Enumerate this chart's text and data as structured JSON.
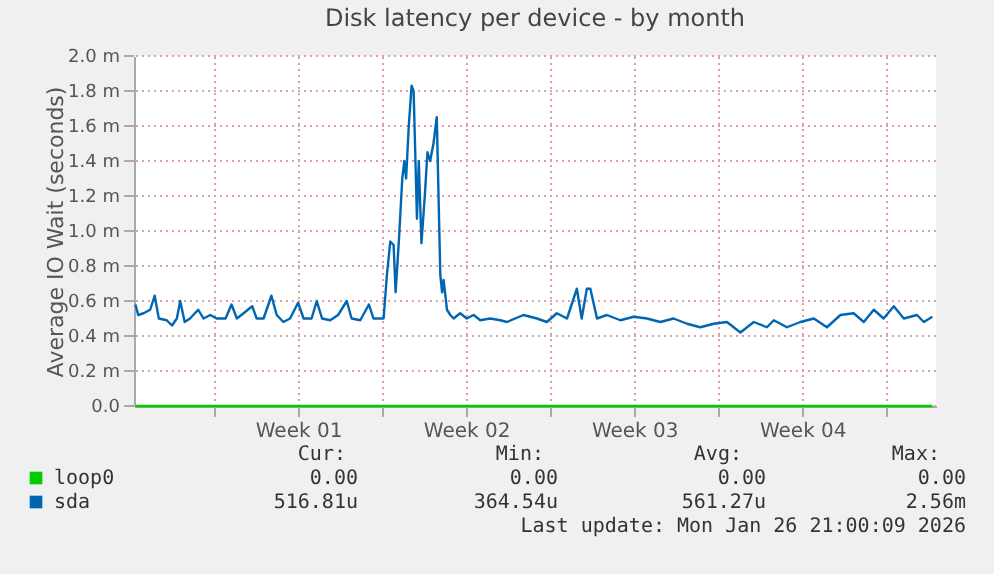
{
  "chart_data": {
    "type": "line",
    "title": "Disk latency per device - by month",
    "ylabel": "Average IO Wait (seconds)",
    "xlim": [
      "2025-12-25T16:00",
      "2026-01-28T01:40"
    ],
    "ylim": [
      0,
      2.0
    ],
    "xticks": [
      {
        "value": "2025-12-29",
        "label": null
      },
      {
        "value": "2026-01-01T12:00",
        "label": "Week 01"
      },
      {
        "value": "2026-01-05",
        "label": null
      },
      {
        "value": "2026-01-08T12:00",
        "label": "Week 02"
      },
      {
        "value": "2026-01-12",
        "label": null
      },
      {
        "value": "2026-01-15T12:00",
        "label": "Week 03"
      },
      {
        "value": "2026-01-19",
        "label": null
      },
      {
        "value": "2026-01-22T12:00",
        "label": "Week 04"
      },
      {
        "value": "2026-01-26",
        "label": null
      }
    ],
    "yticks": [
      {
        "value": 0,
        "label": "0.0"
      },
      {
        "value": 0.2,
        "label": "0.2 m"
      },
      {
        "value": 0.4,
        "label": "0.4 m"
      },
      {
        "value": 0.6,
        "label": "0.6 m"
      },
      {
        "value": 0.8,
        "label": "0.8 m"
      },
      {
        "value": 1.0,
        "label": "1.0 m"
      },
      {
        "value": 1.2,
        "label": "1.2 m"
      },
      {
        "value": 1.4,
        "label": "1.4 m"
      },
      {
        "value": 1.6,
        "label": "1.6 m"
      },
      {
        "value": 1.8,
        "label": "1.8 m"
      },
      {
        "value": 2.0,
        "label": "2.0 m"
      }
    ],
    "grid": true,
    "legend": "bottom",
    "series": [
      {
        "name": "loop0",
        "color": "#00cc00",
        "x": [
          "2025-12-25T17:30",
          "2026-01-27T22:00"
        ],
        "values": [
          0,
          0
        ]
      },
      {
        "name": "sda",
        "color": "#0066b3",
        "x": [
          "2025-12-25T17:30",
          "2025-12-25T20:10",
          "2025-12-26T01:30",
          "2025-12-26T08:10",
          "2025-12-26T12:40",
          "2025-12-26T16:50",
          "2025-12-27T00:40",
          "2025-12-27T06:00",
          "2025-12-27T10:50",
          "2025-12-27T14:10",
          "2025-12-27T18:40",
          "2025-12-28T00:00",
          "2025-12-28T08:10",
          "2025-12-28T13:30",
          "2025-12-28T20:10",
          "2025-12-29T02:40",
          "2025-12-29T11:30",
          "2025-12-29T17:30",
          "2025-12-29T22:50",
          "2025-12-30T05:30",
          "2025-12-30T14:10",
          "2025-12-30T18:40",
          "2025-12-31T01:30",
          "2025-12-31T09:20",
          "2025-12-31T14:40",
          "2025-12-31T21:20",
          "2026-01-01T04:00",
          "2026-01-01T12:00",
          "2026-01-01T17:30",
          "2026-01-02T01:30",
          "2026-01-02T06:40",
          "2026-01-02T12:00",
          "2026-01-02T20:10",
          "2026-01-03T04:00",
          "2026-01-03T12:40",
          "2026-01-03T17:30",
          "2026-01-04T02:10",
          "2026-01-04T10:50",
          "2026-01-04T15:20",
          "2026-01-04T22:10",
          "2026-01-05T01:30",
          "2026-01-05T04:50",
          "2026-01-05T08:10",
          "2026-01-05T11:30",
          "2026-01-05T13:30",
          "2026-01-05T16:50",
          "2026-01-05T20:10",
          "2026-01-05T22:10",
          "2026-01-06T00:00",
          "2026-01-06T02:40",
          "2026-01-06T05:30",
          "2026-01-06T07:30",
          "2026-01-06T10:50",
          "2026-01-06T12:40",
          "2026-01-06T15:20",
          "2026-01-06T18:40",
          "2026-01-06T21:20",
          "2026-01-07T00:00",
          "2026-01-07T03:20",
          "2026-01-07T06:40",
          "2026-01-07T10:10",
          "2026-01-07T12:00",
          "2026-01-07T13:30",
          "2026-01-07T16:50",
          "2026-01-07T20:10",
          "2026-01-07T23:30",
          "2026-01-08T06:00",
          "2026-01-08T12:40",
          "2026-01-08T19:30",
          "2026-01-09T02:10",
          "2026-01-09T12:00",
          "2026-01-09T22:10",
          "2026-01-10T04:50",
          "2026-01-10T21:20",
          "2026-01-11T10:50",
          "2026-01-11T20:40",
          "2026-01-12T06:40",
          "2026-01-12T16:50",
          "2026-01-13T02:40",
          "2026-01-13T07:30",
          "2026-01-13T12:40",
          "2026-01-13T16:10",
          "2026-01-13T22:50",
          "2026-01-14T08:40",
          "2026-01-14T22:10",
          "2026-01-15T11:30",
          "2026-01-16T00:40",
          "2026-01-16T14:10",
          "2026-01-17T03:20",
          "2026-01-17T16:50",
          "2026-01-18T06:00",
          "2026-01-18T19:30",
          "2026-01-19T08:40",
          "2026-01-19T22:10",
          "2026-01-20T11:30",
          "2026-01-21T00:40",
          "2026-01-21T07:30",
          "2026-01-21T20:40",
          "2026-01-22T10:10",
          "2026-01-22T23:30",
          "2026-01-23T12:40",
          "2026-01-24T02:10",
          "2026-01-24T15:20",
          "2026-01-25T01:30",
          "2026-01-25T11:30",
          "2026-01-25T21:20",
          "2026-01-26T07:30",
          "2026-01-26T17:30",
          "2026-01-27T06:40",
          "2026-01-27T13:30",
          "2026-01-27T22:00"
        ],
        "values": [
          0.58,
          0.52,
          0.53,
          0.55,
          0.63,
          0.5,
          0.49,
          0.46,
          0.5,
          0.6,
          0.48,
          0.5,
          0.55,
          0.5,
          0.52,
          0.5,
          0.5,
          0.58,
          0.5,
          0.53,
          0.57,
          0.5,
          0.5,
          0.63,
          0.52,
          0.48,
          0.5,
          0.59,
          0.5,
          0.5,
          0.6,
          0.5,
          0.49,
          0.52,
          0.6,
          0.5,
          0.49,
          0.58,
          0.5,
          0.5,
          0.5,
          0.75,
          0.94,
          0.92,
          0.65,
          0.95,
          1.3,
          1.4,
          1.3,
          1.6,
          1.83,
          1.8,
          1.07,
          1.4,
          0.93,
          1.2,
          1.45,
          1.4,
          1.5,
          1.65,
          0.75,
          0.65,
          0.72,
          0.55,
          0.52,
          0.5,
          0.53,
          0.5,
          0.52,
          0.49,
          0.5,
          0.49,
          0.48,
          0.52,
          0.5,
          0.48,
          0.53,
          0.5,
          0.67,
          0.5,
          0.67,
          0.67,
          0.5,
          0.52,
          0.49,
          0.51,
          0.5,
          0.48,
          0.5,
          0.47,
          0.45,
          0.47,
          0.48,
          0.42,
          0.48,
          0.45,
          0.49,
          0.45,
          0.48,
          0.5,
          0.45,
          0.52,
          0.53,
          0.48,
          0.55,
          0.5,
          0.57,
          0.5,
          0.52,
          0.48,
          0.51
        ]
      }
    ],
    "annotations": [
      "Cur:",
      "Min:",
      "Avg:",
      "Max:",
      "0.00",
      "0.00",
      "0.00",
      "0.00",
      "516.81u",
      "364.54u",
      "561.27u",
      "2.56m",
      "Last update: Mon Jan 26 21:00:09 2026"
    ]
  }
}
